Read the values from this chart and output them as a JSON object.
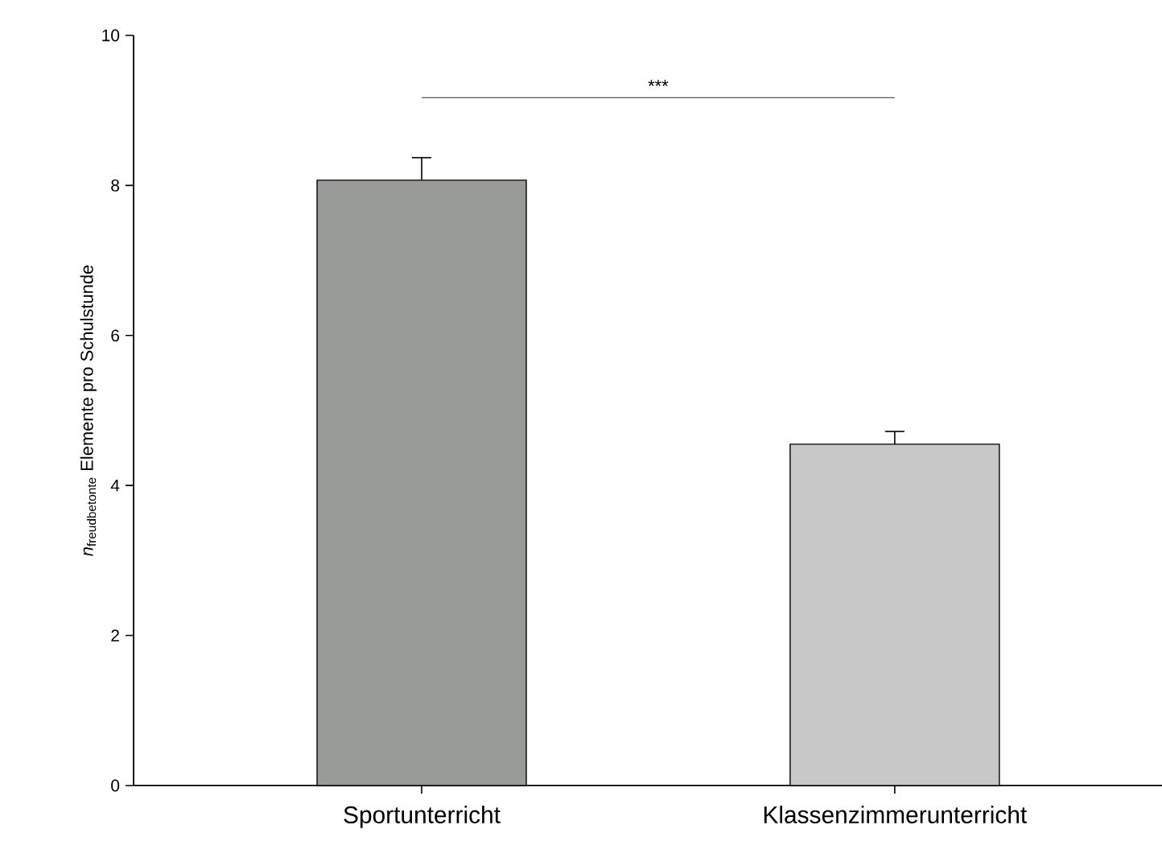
{
  "chart_data": {
    "type": "bar",
    "ylabel": "\\textit{n}_{\\text{freudbetonte}}\\text{ Elemente pro Schulstunde}",
    "categories": [
      "Sportunterricht",
      "Klassenzimmerunterricht"
    ],
    "values": [
      8.07,
      4.55
    ],
    "errors": [
      0.3,
      0.17
    ],
    "colors": [
      "#999b99",
      "#c8c8c8"
    ],
    "ylim": [
      0,
      10
    ],
    "yticks": [
      0,
      2,
      4,
      6,
      8,
      10
    ],
    "grid": false,
    "annotations": [
      "***"
    ]
  }
}
